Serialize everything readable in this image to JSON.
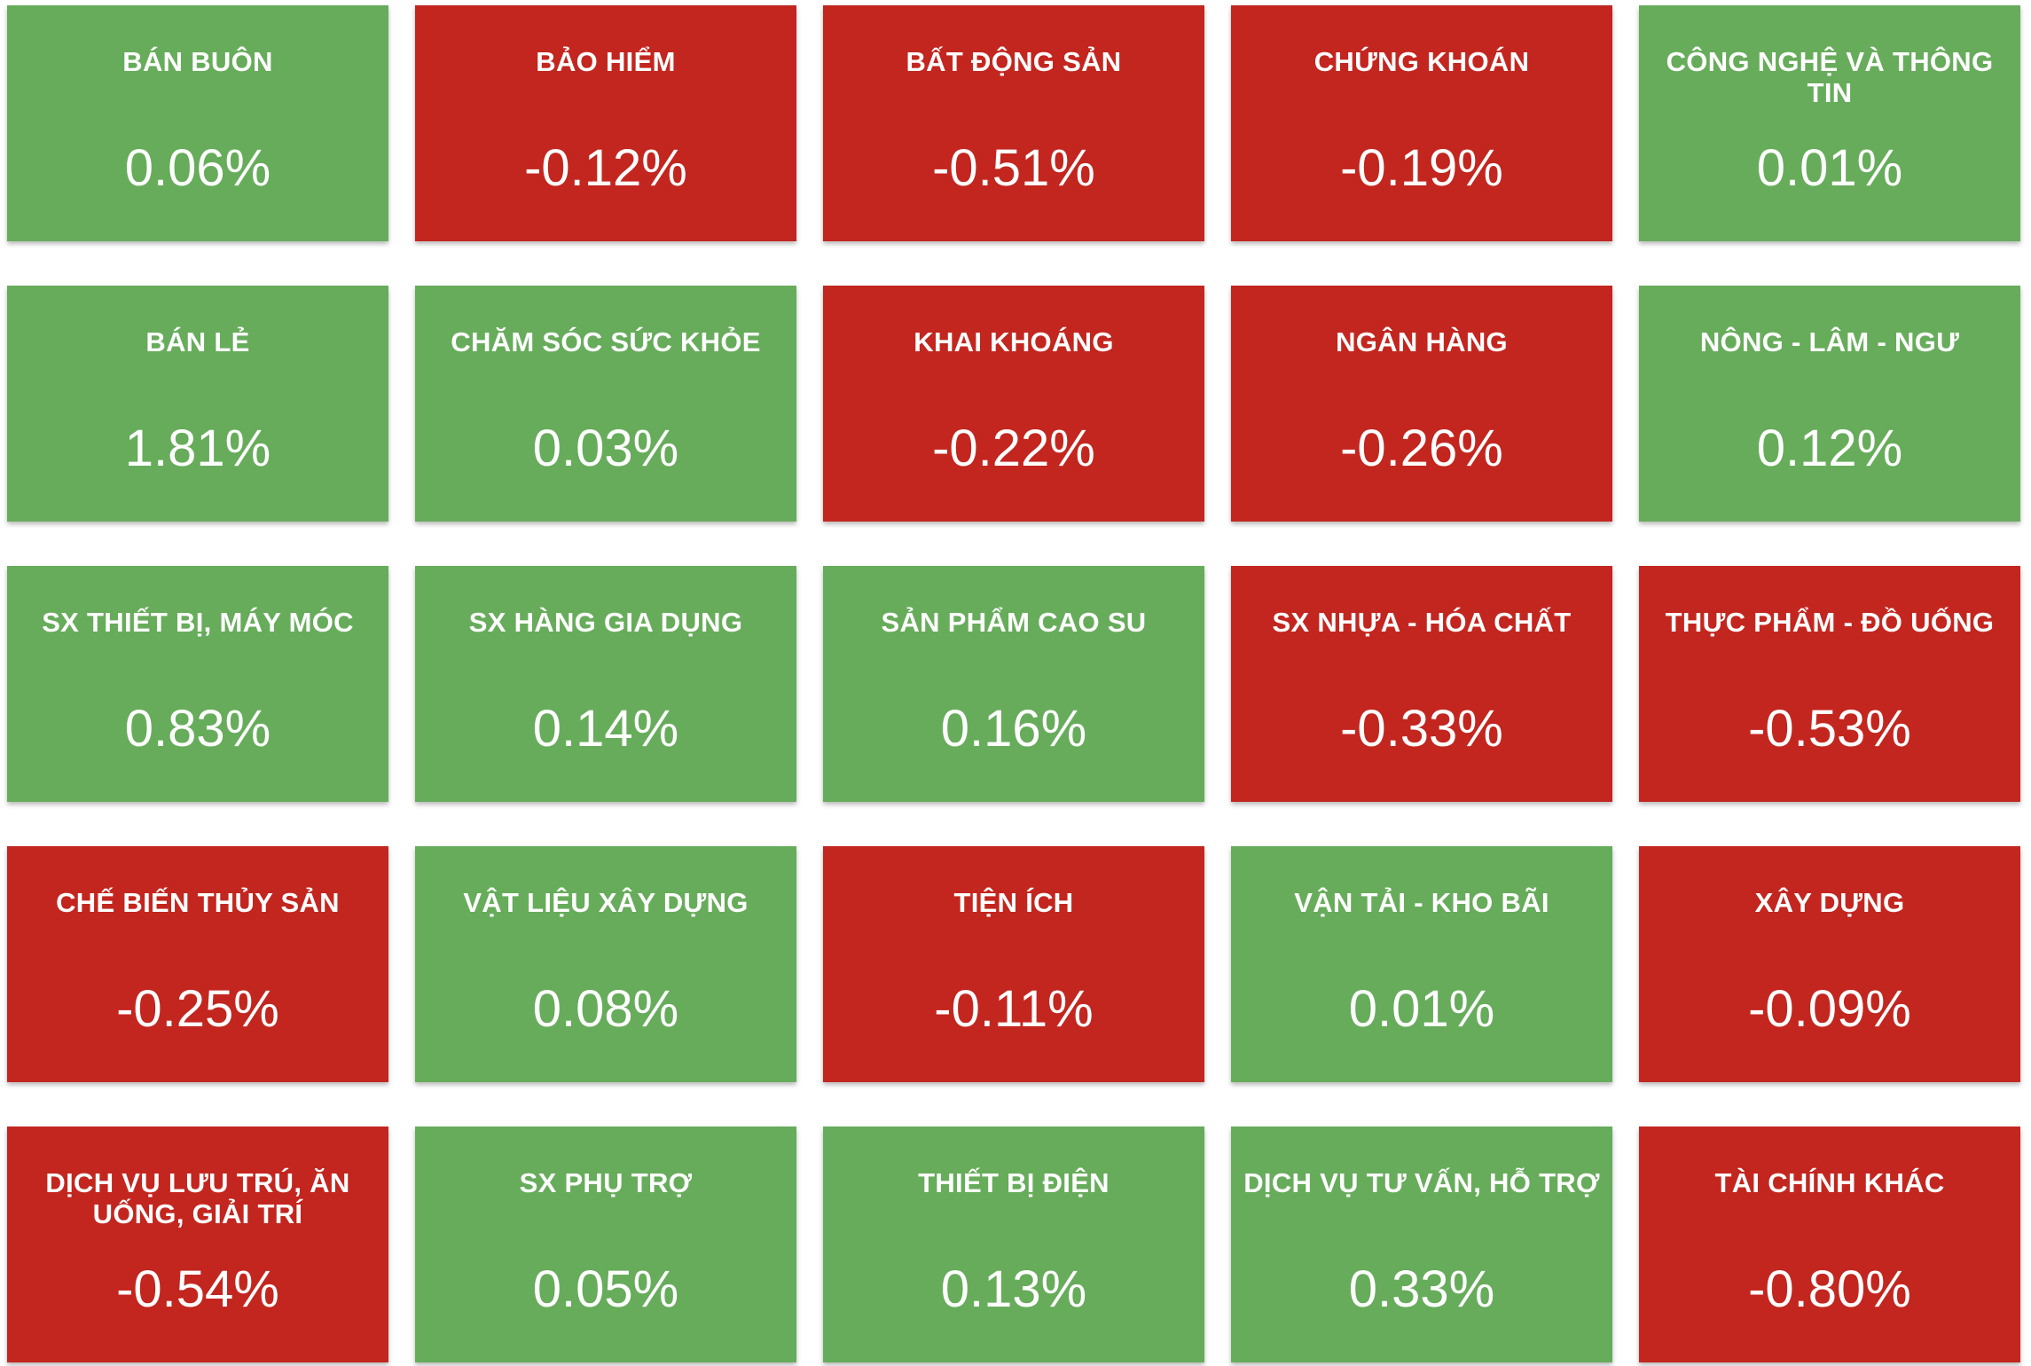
{
  "colors": {
    "positive": "#67ac5b",
    "negative": "#c3261f",
    "text": "#ffffff"
  },
  "sectors": [
    {
      "name": "BÁN BUÔN",
      "change": "0.06%"
    },
    {
      "name": "BẢO HIỂM",
      "change": "-0.12%"
    },
    {
      "name": "BẤT ĐỘNG SẢN",
      "change": "-0.51%"
    },
    {
      "name": "CHỨNG KHOÁN",
      "change": "-0.19%"
    },
    {
      "name": "CÔNG NGHỆ VÀ THÔNG TIN",
      "change": "0.01%"
    },
    {
      "name": "BÁN LẺ",
      "change": "1.81%"
    },
    {
      "name": "CHĂM SÓC SỨC KHỎE",
      "change": "0.03%"
    },
    {
      "name": "KHAI KHOÁNG",
      "change": "-0.22%"
    },
    {
      "name": "NGÂN HÀNG",
      "change": "-0.26%"
    },
    {
      "name": "NÔNG - LÂM - NGƯ",
      "change": "0.12%"
    },
    {
      "name": "SX THIẾT BỊ, MÁY MÓC",
      "change": "0.83%"
    },
    {
      "name": "SX HÀNG GIA DỤNG",
      "change": "0.14%"
    },
    {
      "name": "SẢN PHẨM CAO SU",
      "change": "0.16%"
    },
    {
      "name": "SX NHỰA - HÓA CHẤT",
      "change": "-0.33%"
    },
    {
      "name": "THỰC PHẨM - ĐỒ UỐNG",
      "change": "-0.53%"
    },
    {
      "name": "CHẾ BIẾN THỦY SẢN",
      "change": "-0.25%"
    },
    {
      "name": "VẬT LIỆU XÂY DỰNG",
      "change": "0.08%"
    },
    {
      "name": "TIỆN ÍCH",
      "change": "-0.11%"
    },
    {
      "name": "VẬN TẢI - KHO BÃI",
      "change": "0.01%"
    },
    {
      "name": "XÂY DỰNG",
      "change": "-0.09%"
    },
    {
      "name": "DỊCH VỤ LƯU TRÚ, ĂN UỐNG, GIẢI TRÍ",
      "change": "-0.54%"
    },
    {
      "name": "SX PHỤ TRỢ",
      "change": "0.05%"
    },
    {
      "name": "THIẾT BỊ ĐIỆN",
      "change": "0.13%"
    },
    {
      "name": "DỊCH VỤ TƯ VẤN, HỖ TRỢ",
      "change": "0.33%"
    },
    {
      "name": "TÀI CHÍNH KHÁC",
      "change": "-0.80%"
    }
  ]
}
